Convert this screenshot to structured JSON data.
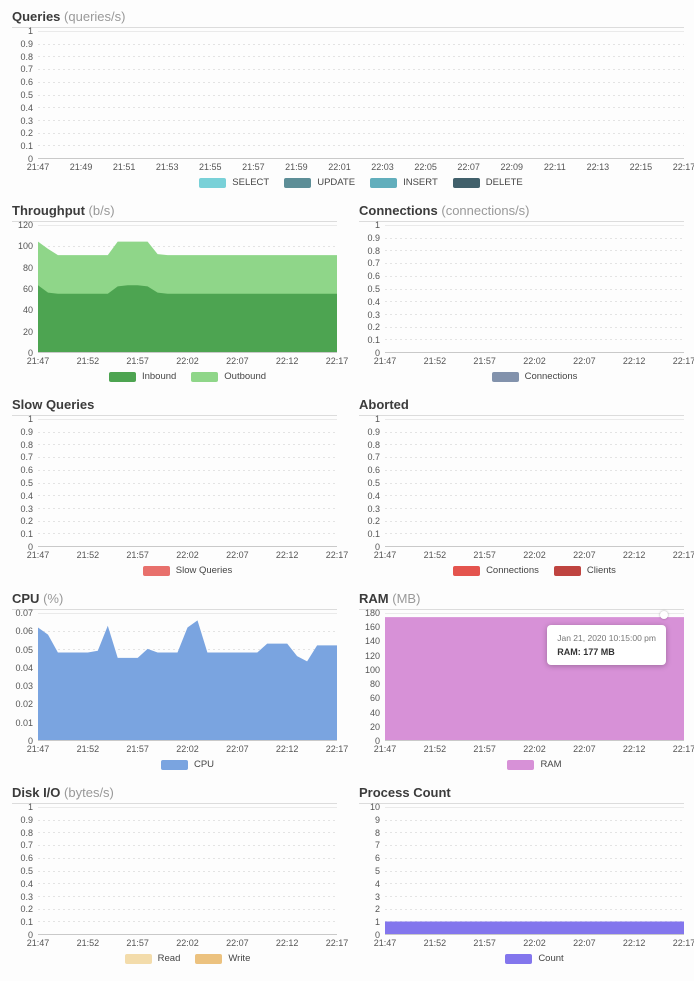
{
  "chart_data": [
    {
      "type": "area",
      "title": "Queries",
      "unit": "(queries/s)",
      "full_width": true,
      "ylim": [
        0,
        1
      ],
      "yticks": [
        "1",
        "0.9",
        "0.8",
        "0.7",
        "0.6",
        "0.5",
        "0.4",
        "0.3",
        "0.2",
        "0.1",
        "0"
      ],
      "xticks": [
        "21:47",
        "21:49",
        "21:51",
        "21:53",
        "21:55",
        "21:57",
        "21:59",
        "22:01",
        "22:03",
        "22:05",
        "22:07",
        "22:09",
        "22:11",
        "22:13",
        "22:15",
        "22:17"
      ],
      "series": [
        {
          "name": "SELECT",
          "color": "#79d1d8",
          "values": []
        },
        {
          "name": "UPDATE",
          "color": "#5d8e97",
          "values": []
        },
        {
          "name": "INSERT",
          "color": "#61aebc",
          "values": []
        },
        {
          "name": "DELETE",
          "color": "#41606b",
          "values": []
        }
      ]
    },
    {
      "type": "area",
      "title": "Throughput",
      "unit": "(b/s)",
      "stacked": true,
      "ylim": [
        0,
        120
      ],
      "yticks": [
        "120",
        "100",
        "80",
        "60",
        "40",
        "20",
        "0"
      ],
      "xticks": [
        "21:47",
        "21:52",
        "21:57",
        "22:02",
        "22:07",
        "22:12",
        "22:17"
      ],
      "series": [
        {
          "name": "Inbound",
          "color": "#4da451",
          "values": [
            64,
            57,
            56,
            56,
            56,
            56,
            56,
            56,
            63,
            64,
            64,
            63,
            57,
            56,
            56,
            56,
            56,
            56,
            56,
            56,
            56,
            56,
            56,
            56,
            56,
            56,
            56,
            56,
            56,
            56,
            56
          ]
        },
        {
          "name": "Outbound",
          "color": "#8fd689",
          "values": [
            42,
            42,
            37,
            37,
            37,
            37,
            37,
            37,
            43,
            42,
            42,
            43,
            37,
            37,
            37,
            37,
            37,
            37,
            37,
            37,
            37,
            37,
            37,
            37,
            37,
            37,
            37,
            37,
            37,
            37,
            37
          ]
        }
      ]
    },
    {
      "type": "area",
      "title": "Connections",
      "unit": "(connections/s)",
      "ylim": [
        0,
        1
      ],
      "yticks": [
        "1",
        "0.9",
        "0.8",
        "0.7",
        "0.6",
        "0.5",
        "0.4",
        "0.3",
        "0.2",
        "0.1",
        "0"
      ],
      "xticks": [
        "21:47",
        "21:52",
        "21:57",
        "22:02",
        "22:07",
        "22:12",
        "22:17"
      ],
      "series": [
        {
          "name": "Connections",
          "color": "#8292ac",
          "values": []
        }
      ]
    },
    {
      "type": "area",
      "title": "Slow Queries",
      "unit": "",
      "ylim": [
        0,
        1
      ],
      "yticks": [
        "1",
        "0.9",
        "0.8",
        "0.7",
        "0.6",
        "0.5",
        "0.4",
        "0.3",
        "0.2",
        "0.1",
        "0"
      ],
      "xticks": [
        "21:47",
        "21:52",
        "21:57",
        "22:02",
        "22:07",
        "22:12",
        "22:17"
      ],
      "series": [
        {
          "name": "Slow Queries",
          "color": "#e8706c",
          "values": []
        }
      ]
    },
    {
      "type": "area",
      "title": "Aborted",
      "unit": "",
      "ylim": [
        0,
        1
      ],
      "yticks": [
        "1",
        "0.9",
        "0.8",
        "0.7",
        "0.6",
        "0.5",
        "0.4",
        "0.3",
        "0.2",
        "0.1",
        "0"
      ],
      "xticks": [
        "21:47",
        "21:52",
        "21:57",
        "22:02",
        "22:07",
        "22:12",
        "22:17"
      ],
      "series": [
        {
          "name": "Connections",
          "color": "#e4544e",
          "values": []
        },
        {
          "name": "Clients",
          "color": "#bf4440",
          "values": []
        }
      ]
    },
    {
      "type": "area",
      "title": "CPU",
      "unit": "(%)",
      "ylim": [
        0,
        0.07
      ],
      "yticks": [
        "0.07",
        "0.06",
        "0.05",
        "0.04",
        "0.03",
        "0.02",
        "0.01",
        "0"
      ],
      "xticks": [
        "21:47",
        "21:52",
        "21:57",
        "22:02",
        "22:07",
        "22:12",
        "22:17"
      ],
      "series": [
        {
          "name": "CPU",
          "color": "#7aa4e0",
          "values": [
            0.063,
            0.059,
            0.049,
            0.049,
            0.049,
            0.049,
            0.05,
            0.064,
            0.046,
            0.046,
            0.046,
            0.051,
            0.049,
            0.049,
            0.049,
            0.063,
            0.067,
            0.049,
            0.049,
            0.049,
            0.049,
            0.049,
            0.049,
            0.054,
            0.054,
            0.054,
            0.047,
            0.044,
            0.053,
            0.053,
            0.053
          ]
        }
      ]
    },
    {
      "type": "area",
      "title": "RAM",
      "unit": "(MB)",
      "ylim": [
        0,
        180
      ],
      "yticks": [
        "180",
        "160",
        "140",
        "120",
        "100",
        "80",
        "60",
        "40",
        "20",
        "0"
      ],
      "xticks": [
        "21:47",
        "21:52",
        "21:57",
        "22:02",
        "22:07",
        "22:12",
        "22:17"
      ],
      "series": [
        {
          "name": "RAM",
          "color": "#d791d7",
          "values": [
            177,
            177,
            177,
            177,
            177,
            177,
            177
          ]
        }
      ],
      "tooltip": {
        "line1": "Jan 21, 2020 10:15:00 pm",
        "line2": "RAM: 177 MB",
        "x_frac": 0.934,
        "value": 177
      }
    },
    {
      "type": "area",
      "title": "Disk I/O",
      "unit": "(bytes/s)",
      "ylim": [
        0,
        1
      ],
      "yticks": [
        "1",
        "0.9",
        "0.8",
        "0.7",
        "0.6",
        "0.5",
        "0.4",
        "0.3",
        "0.2",
        "0.1",
        "0"
      ],
      "xticks": [
        "21:47",
        "21:52",
        "21:57",
        "22:02",
        "22:07",
        "22:12",
        "22:17"
      ],
      "series": [
        {
          "name": "Read",
          "color": "#f3dcab",
          "values": []
        },
        {
          "name": "Write",
          "color": "#ecc27f",
          "values": []
        }
      ]
    },
    {
      "type": "area",
      "title": "Process Count",
      "unit": "",
      "ylim": [
        0,
        10
      ],
      "yticks": [
        "10",
        "9",
        "8",
        "7",
        "6",
        "5",
        "4",
        "3",
        "2",
        "1",
        "0"
      ],
      "xticks": [
        "21:47",
        "21:52",
        "21:57",
        "22:02",
        "22:07",
        "22:12",
        "22:17"
      ],
      "series": [
        {
          "name": "Count",
          "color": "#8376ed",
          "values": [
            1,
            1,
            1,
            1,
            1,
            1,
            1
          ]
        }
      ]
    }
  ],
  "colors": {
    "grid_line": "#e3e3e3",
    "axis_line": "#c9c9c9",
    "title_text": "#3b3b3b",
    "unit_text": "#999999",
    "tick_text": "#555555"
  }
}
